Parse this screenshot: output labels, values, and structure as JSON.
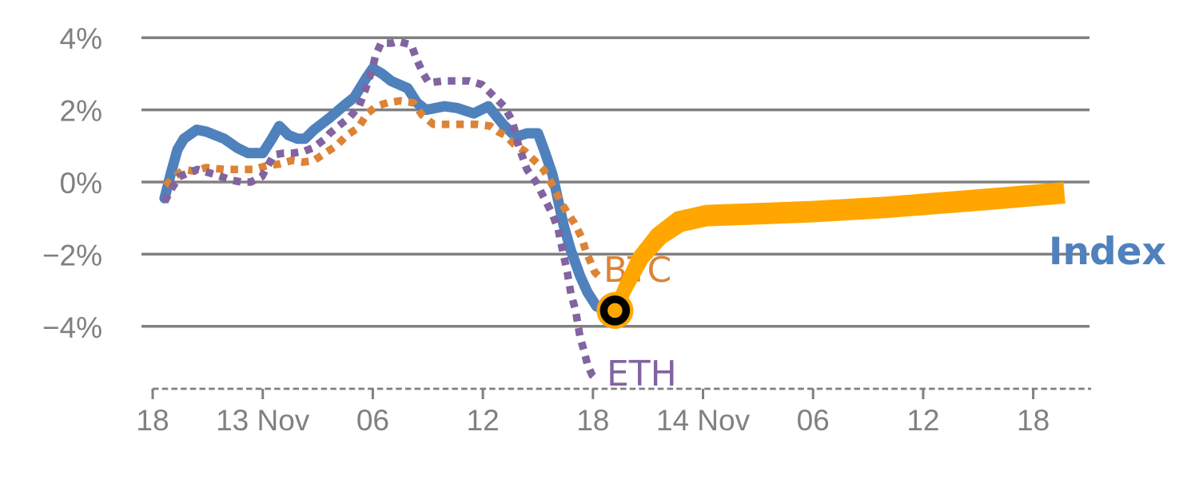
{
  "page": {
    "background": "#ffffff"
  },
  "chart_data": {
    "type": "line",
    "title": "",
    "description_visible_labels": [
      "BTC",
      "ETH",
      "Index"
    ],
    "x_axis": {
      "unit": "hours",
      "tick_labels": [
        "18",
        "13 Nov",
        "06",
        "12",
        "18",
        "14 Nov",
        "06",
        "12",
        "18"
      ],
      "tick_hours": [
        0,
        6,
        12,
        18,
        24,
        30,
        36,
        42,
        48
      ],
      "axis_style": "dashed",
      "range_hours": [
        0,
        51.2
      ]
    },
    "y_axis": {
      "ticks": [
        {
          "label": "4%",
          "value": 4
        },
        {
          "label": "2%",
          "value": 2
        },
        {
          "label": "0%",
          "value": 0
        },
        {
          "label": "−2%",
          "value": -2
        },
        {
          "label": "−4%",
          "value": -4
        }
      ],
      "unit": "percent",
      "grid": true,
      "range": [
        -5.7,
        4.6
      ]
    },
    "colors": {
      "axis_gray": "#808080",
      "index_blue": "#4F81BD",
      "btc_orange": "#DC8335",
      "eth_purple": "#8164A0",
      "forecast_orange": "#FFA600",
      "marker_black": "#000000"
    },
    "series": [
      {
        "name": "Index",
        "color": "#4F81BD",
        "style": "solid",
        "points": [
          [
            0.65,
            -0.45
          ],
          [
            1.0,
            0.25
          ],
          [
            1.35,
            0.9
          ],
          [
            1.7,
            1.2
          ],
          [
            2.4,
            1.45
          ],
          [
            2.9,
            1.4
          ],
          [
            3.9,
            1.2
          ],
          [
            4.6,
            0.95
          ],
          [
            5.2,
            0.8
          ],
          [
            6.0,
            0.8
          ],
          [
            6.5,
            1.2
          ],
          [
            6.9,
            1.55
          ],
          [
            7.4,
            1.3
          ],
          [
            7.9,
            1.2
          ],
          [
            8.3,
            1.2
          ],
          [
            8.8,
            1.45
          ],
          [
            9.7,
            1.8
          ],
          [
            10.5,
            2.15
          ],
          [
            11.0,
            2.35
          ],
          [
            11.6,
            2.85
          ],
          [
            12.0,
            3.15
          ],
          [
            12.5,
            3.0
          ],
          [
            13.0,
            2.8
          ],
          [
            13.9,
            2.6
          ],
          [
            14.4,
            2.2
          ],
          [
            14.9,
            2.0
          ],
          [
            15.9,
            2.1
          ],
          [
            16.6,
            2.05
          ],
          [
            17.5,
            1.9
          ],
          [
            18.3,
            2.1
          ],
          [
            19.1,
            1.6
          ],
          [
            19.8,
            1.25
          ],
          [
            20.4,
            1.35
          ],
          [
            21.0,
            1.35
          ],
          [
            21.4,
            0.8
          ],
          [
            21.8,
            0.2
          ],
          [
            22.1,
            -0.5
          ],
          [
            22.4,
            -1.2
          ],
          [
            22.8,
            -1.9
          ],
          [
            23.3,
            -2.6
          ],
          [
            23.7,
            -3.05
          ],
          [
            24.2,
            -3.45
          ],
          [
            24.7,
            -3.55
          ]
        ]
      },
      {
        "name": "BTC",
        "color": "#DC8335",
        "style": "dotted",
        "points": [
          [
            0.7,
            -0.1
          ],
          [
            1.1,
            0.1
          ],
          [
            1.7,
            0.35
          ],
          [
            2.3,
            0.3
          ],
          [
            2.9,
            0.4
          ],
          [
            3.9,
            0.35
          ],
          [
            4.7,
            0.35
          ],
          [
            5.5,
            0.35
          ],
          [
            6.2,
            0.45
          ],
          [
            6.9,
            0.5
          ],
          [
            7.6,
            0.6
          ],
          [
            8.2,
            0.55
          ],
          [
            8.8,
            0.6
          ],
          [
            9.4,
            0.8
          ],
          [
            10.0,
            1.0
          ],
          [
            10.6,
            1.3
          ],
          [
            11.2,
            1.5
          ],
          [
            11.7,
            1.9
          ],
          [
            12.2,
            2.1
          ],
          [
            12.8,
            2.2
          ],
          [
            13.5,
            2.25
          ],
          [
            14.2,
            2.2
          ],
          [
            14.7,
            1.85
          ],
          [
            15.3,
            1.6
          ],
          [
            16.0,
            1.6
          ],
          [
            16.9,
            1.6
          ],
          [
            17.6,
            1.6
          ],
          [
            18.4,
            1.55
          ],
          [
            18.8,
            1.4
          ],
          [
            19.2,
            1.3
          ],
          [
            19.7,
            1.05
          ],
          [
            20.3,
            0.85
          ],
          [
            20.8,
            0.6
          ],
          [
            21.3,
            0.35
          ],
          [
            21.7,
            0.0
          ],
          [
            22.0,
            -0.3
          ],
          [
            22.3,
            -0.6
          ],
          [
            22.6,
            -0.85
          ],
          [
            23.0,
            -1.15
          ],
          [
            23.4,
            -1.55
          ],
          [
            23.6,
            -1.9
          ],
          [
            23.9,
            -2.25
          ],
          [
            24.1,
            -2.5
          ],
          [
            24.5,
            -2.7
          ]
        ]
      },
      {
        "name": "ETH",
        "color": "#8164A0",
        "style": "dotted",
        "points": [
          [
            0.65,
            -0.55
          ],
          [
            0.95,
            -0.25
          ],
          [
            1.45,
            0.15
          ],
          [
            2.45,
            0.35
          ],
          [
            3.45,
            0.2
          ],
          [
            4.3,
            0.05
          ],
          [
            4.85,
            0.0
          ],
          [
            5.35,
            0.0
          ],
          [
            5.95,
            0.15
          ],
          [
            6.6,
            0.75
          ],
          [
            7.15,
            0.8
          ],
          [
            7.65,
            0.8
          ],
          [
            8.25,
            0.85
          ],
          [
            8.75,
            0.95
          ],
          [
            9.4,
            1.2
          ],
          [
            9.65,
            1.35
          ],
          [
            10.25,
            1.6
          ],
          [
            10.75,
            1.8
          ],
          [
            11.25,
            2.1
          ],
          [
            11.55,
            2.5
          ],
          [
            11.95,
            3.1
          ],
          [
            12.15,
            3.5
          ],
          [
            12.45,
            3.85
          ],
          [
            13.05,
            3.85
          ],
          [
            13.35,
            3.9
          ],
          [
            14.1,
            3.8
          ],
          [
            14.35,
            3.45
          ],
          [
            14.75,
            3.0
          ],
          [
            15.05,
            2.75
          ],
          [
            15.85,
            2.8
          ],
          [
            16.65,
            2.8
          ],
          [
            17.25,
            2.8
          ],
          [
            17.95,
            2.7
          ],
          [
            18.45,
            2.45
          ],
          [
            19.15,
            2.1
          ],
          [
            19.6,
            1.7
          ],
          [
            19.95,
            1.0
          ],
          [
            20.4,
            0.35
          ],
          [
            20.9,
            0.0
          ],
          [
            21.2,
            -0.3
          ],
          [
            21.5,
            -0.6
          ],
          [
            21.8,
            -0.9
          ],
          [
            22.1,
            -1.3
          ],
          [
            22.35,
            -1.9
          ],
          [
            22.6,
            -2.5
          ],
          [
            22.8,
            -3.1
          ],
          [
            23.05,
            -3.55
          ],
          [
            23.3,
            -4.3
          ],
          [
            23.5,
            -4.65
          ],
          [
            23.7,
            -5.05
          ],
          [
            23.95,
            -5.35
          ],
          [
            24.15,
            -5.45
          ]
        ]
      },
      {
        "name": "Index forecast",
        "color": "#FFA600",
        "style": "band",
        "points": [
          [
            25.2,
            -3.56
          ],
          [
            25.8,
            -2.9
          ],
          [
            26.6,
            -2.1
          ],
          [
            27.6,
            -1.5
          ],
          [
            28.7,
            -1.1
          ],
          [
            30.2,
            -0.93
          ],
          [
            33.0,
            -0.88
          ],
          [
            36.0,
            -0.82
          ],
          [
            40.0,
            -0.7
          ],
          [
            45.0,
            -0.5
          ],
          [
            49.7,
            -0.3
          ]
        ]
      }
    ],
    "marker": {
      "series": "Index",
      "t": 25.2,
      "pct": -3.56
    },
    "legend_position": "inline-labels"
  }
}
